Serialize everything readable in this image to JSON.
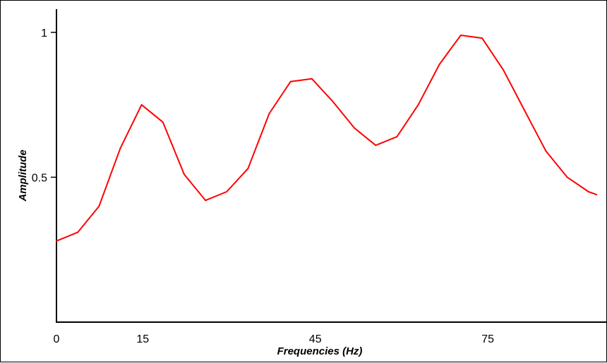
{
  "chart_data": {
    "type": "line",
    "title": "",
    "xlabel": "Frequencies (Hz)",
    "ylabel": "Amplitude",
    "xlim": [
      0,
      94
    ],
    "ylim": [
      0,
      1.08
    ],
    "xticks": [
      {
        "value": 0,
        "label": "0"
      },
      {
        "value": 15,
        "label": "15"
      },
      {
        "value": 45,
        "label": "45"
      },
      {
        "value": 75,
        "label": "75"
      }
    ],
    "yticks": [
      {
        "value": 0.5,
        "label": "0.5"
      },
      {
        "value": 1,
        "label": "1"
      }
    ],
    "grid": false,
    "legend": "none",
    "line_color": "#ff0000",
    "series": [
      {
        "x": [
          0,
          3.7,
          7.4,
          11.1,
          14.8,
          18.5,
          22.2,
          25.9,
          29.6,
          33.3,
          37.0,
          40.7,
          44.4,
          48.1,
          51.8,
          55.5,
          59.2,
          62.9,
          66.6,
          70.3,
          74.0,
          77.7,
          81.4,
          85.1,
          88.8,
          92.5,
          93.9
        ],
        "y": [
          0.28,
          0.31,
          0.4,
          0.6,
          0.75,
          0.69,
          0.51,
          0.42,
          0.45,
          0.53,
          0.72,
          0.83,
          0.84,
          0.76,
          0.67,
          0.61,
          0.64,
          0.75,
          0.89,
          0.99,
          0.98,
          0.87,
          0.73,
          0.59,
          0.5,
          0.45,
          0.44
        ]
      }
    ]
  }
}
